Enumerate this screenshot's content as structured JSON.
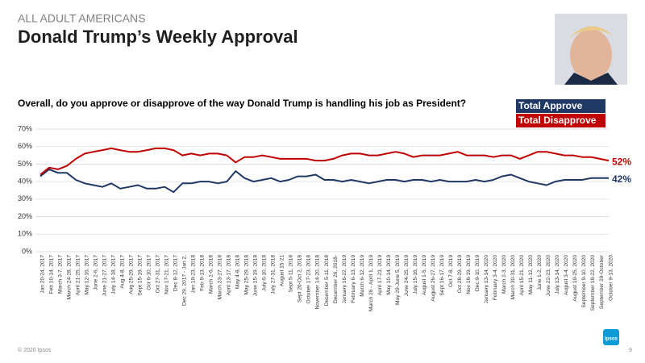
{
  "header": {
    "kicker": "ALL ADULT AMERICANS",
    "title": "Donald Trump’s Weekly Approval"
  },
  "chart_data": {
    "type": "line",
    "title": "Overall, do you approve or disapprove of the way Donald Trump is handling his job as President?",
    "categories": [
      "Jan 20-24, 2017",
      "Feb 10-14, 2017",
      "March 3-7, 2017",
      "March 24-28, 2017",
      "April 21-25, 2017",
      "May 12-16, 2017",
      "June 2-6, 2017",
      "June 21-27, 2017",
      "July 14-18, 2017",
      "Aug 4-8, 2017",
      "Aug 25-29, 2017",
      "Sept 15-19, 2017",
      "Oct 6-10, 2017",
      "Oct 27-31, 2017",
      "Nov 17-21, 2017",
      "Dec 8-12, 2017",
      "Dec 29, 2017 - Jan 2,",
      "Jan 19-23, 2018",
      "Feb 9-13, 2018",
      "March 2-6, 2018",
      "March 23-27, 2018",
      "April 13-17, 2018",
      "May 4-8, 2018",
      "May 25-29, 2018",
      "June 15-19, 2018",
      "July 6-10, 2018",
      "July 27-31, 2018",
      "August 15-21",
      "Sept 5-11, 2018",
      "Sept 26-Oct 2, 2018",
      "October 17-23, 2018",
      "November 14-20, 2018",
      "December 5-11, 2018",
      "December 26, 2018-",
      "January 16-22, 2019",
      "February 6-13, 2019",
      "March 6-12, 2019",
      "March 26 - April 1, 2019",
      "April 17-23, 2019",
      "May 10-14, 2019",
      "May 29-June 5, 2019",
      "June 24-25, 2019",
      "July 15-16, 2019",
      "August 1-5, 2019",
      "August 26-27, 2019",
      "Sept 16-17, 2019",
      "Oct 7-8, 2019",
      "Oct 28-29, 2019",
      "Nov 18-19, 2019",
      "Dec 9-10, 2019",
      "January 13-14, 2020",
      "February 3-4, 2020",
      "March 2-3, 2020",
      "March 30-31, 2020",
      "April 15-21, 2020",
      "May 11-12, 2020",
      "June 1-2, 2020",
      "June 22-23, 2020",
      "July 13-14, 2020",
      "August 3-4, 2020",
      "August 19-25, 2020",
      "September 9-10, 2020",
      "September 18-22, 2020",
      "September 29-October",
      "October 9-13, 2020"
    ],
    "series": [
      {
        "name": "Total Approve",
        "color": "#1f3864",
        "values": [
          43,
          47,
          45,
          45,
          41,
          39,
          38,
          37,
          39,
          36,
          37,
          38,
          36,
          36,
          37,
          34,
          39,
          39,
          40,
          40,
          39,
          40,
          46,
          42,
          40,
          41,
          42,
          40,
          41,
          43,
          43,
          44,
          41,
          41,
          40,
          41,
          40,
          39,
          40,
          41,
          41,
          40,
          41,
          41,
          40,
          41,
          40,
          40,
          40,
          41,
          40,
          41,
          43,
          44,
          42,
          40,
          39,
          38,
          40,
          41,
          41,
          41,
          42,
          42,
          42
        ],
        "value_labels": [
          null,
          null,
          null,
          null,
          null,
          null,
          null,
          null,
          null,
          null,
          null,
          null,
          null,
          null,
          null,
          null,
          null,
          null,
          null,
          null,
          null,
          null,
          null,
          null,
          null,
          null,
          null,
          null,
          null,
          null,
          null,
          null,
          null,
          null,
          null,
          null,
          null,
          null,
          null,
          null,
          null,
          null,
          null,
          null,
          null,
          null,
          null,
          null,
          null,
          null,
          null,
          null,
          null,
          null,
          null,
          null,
          null,
          null,
          null,
          null,
          null,
          null,
          null,
          null,
          "42%"
        ]
      },
      {
        "name": "Total Disapprove",
        "color": "#c00000",
        "values": [
          44,
          48,
          47,
          49,
          53,
          56,
          57,
          58,
          59,
          58,
          57,
          57,
          58,
          59,
          59,
          58,
          55,
          56,
          55,
          56,
          56,
          55,
          51,
          54,
          54,
          55,
          54,
          53,
          53,
          53,
          53,
          52,
          52,
          53,
          55,
          56,
          56,
          55,
          55,
          56,
          57,
          56,
          54,
          55,
          55,
          55,
          56,
          57,
          55,
          55,
          55,
          54,
          55,
          55,
          53,
          55,
          57,
          57,
          56,
          55,
          55,
          54,
          54,
          53,
          52
        ],
        "value_labels": [
          null,
          null,
          null,
          null,
          null,
          null,
          null,
          null,
          null,
          null,
          null,
          null,
          null,
          null,
          null,
          null,
          null,
          null,
          null,
          null,
          null,
          null,
          null,
          null,
          null,
          null,
          null,
          null,
          null,
          null,
          null,
          null,
          null,
          null,
          null,
          null,
          null,
          null,
          null,
          null,
          null,
          null,
          null,
          null,
          null,
          null,
          null,
          null,
          null,
          null,
          null,
          null,
          null,
          null,
          null,
          null,
          null,
          null,
          null,
          null,
          null,
          null,
          null,
          null,
          "52%"
        ]
      }
    ],
    "ylim": [
      0,
      70
    ],
    "yticks": [
      {
        "value": 0,
        "label": "0%"
      },
      {
        "value": 10,
        "label": "10%"
      },
      {
        "value": 20,
        "label": "20%"
      },
      {
        "value": 30,
        "label": "30%"
      },
      {
        "value": 40,
        "label": "40%"
      },
      {
        "value": 50,
        "label": "50%"
      },
      {
        "value": 60,
        "label": "60%"
      },
      {
        "value": 70,
        "label": "70%"
      }
    ],
    "grid": true,
    "legend": "top-right"
  },
  "footer": {
    "copyright": "© 2020 Ipsos",
    "page": "9",
    "logo": "Ipsos"
  }
}
